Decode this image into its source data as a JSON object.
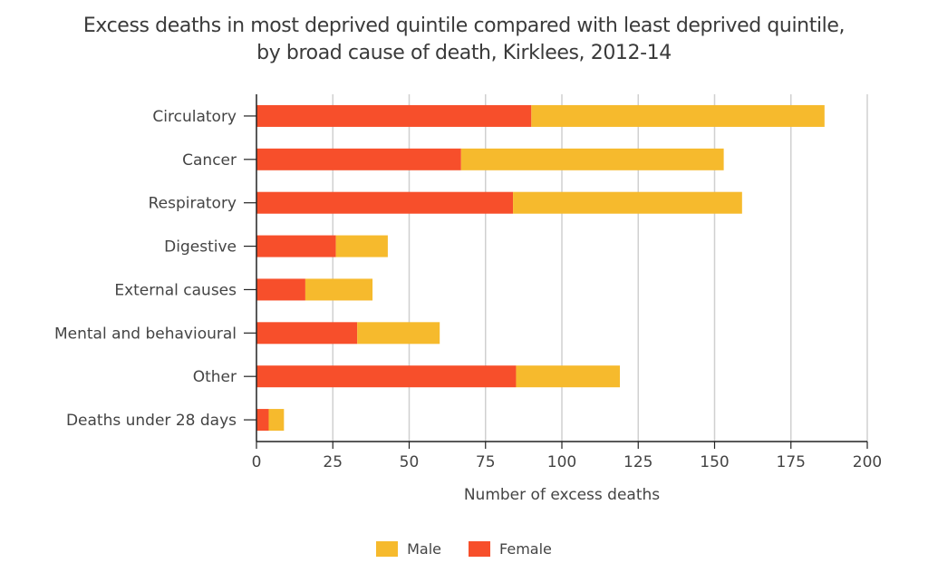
{
  "chart_data": {
    "type": "bar",
    "orientation": "horizontal",
    "stacked": true,
    "title": "Excess deaths in most deprived quintile compared with least deprived quintile,",
    "subtitle": "by broad cause of death, Kirklees, 2012-14",
    "xlabel": "Number of excess deaths",
    "ylabel": "",
    "xlim": [
      0,
      200
    ],
    "xticks": [
      0,
      25,
      50,
      75,
      100,
      125,
      150,
      175,
      200
    ],
    "grid": true,
    "legend_position": "bottom",
    "categories": [
      "Circulatory",
      "Cancer",
      "Respiratory",
      "Digestive",
      "External causes",
      "Mental and behavioural",
      "Other",
      "Deaths under 28 days"
    ],
    "series": [
      {
        "name": "Female",
        "color": "#f74f2b",
        "values": [
          90,
          67,
          84,
          26,
          16,
          33,
          85,
          4
        ]
      },
      {
        "name": "Male",
        "color": "#f6ba2d",
        "values": [
          96,
          86,
          75,
          17,
          22,
          27,
          34,
          5
        ]
      }
    ],
    "legend": [
      {
        "name": "Male",
        "color": "#f6ba2d"
      },
      {
        "name": "Female",
        "color": "#f74f2b"
      }
    ]
  }
}
